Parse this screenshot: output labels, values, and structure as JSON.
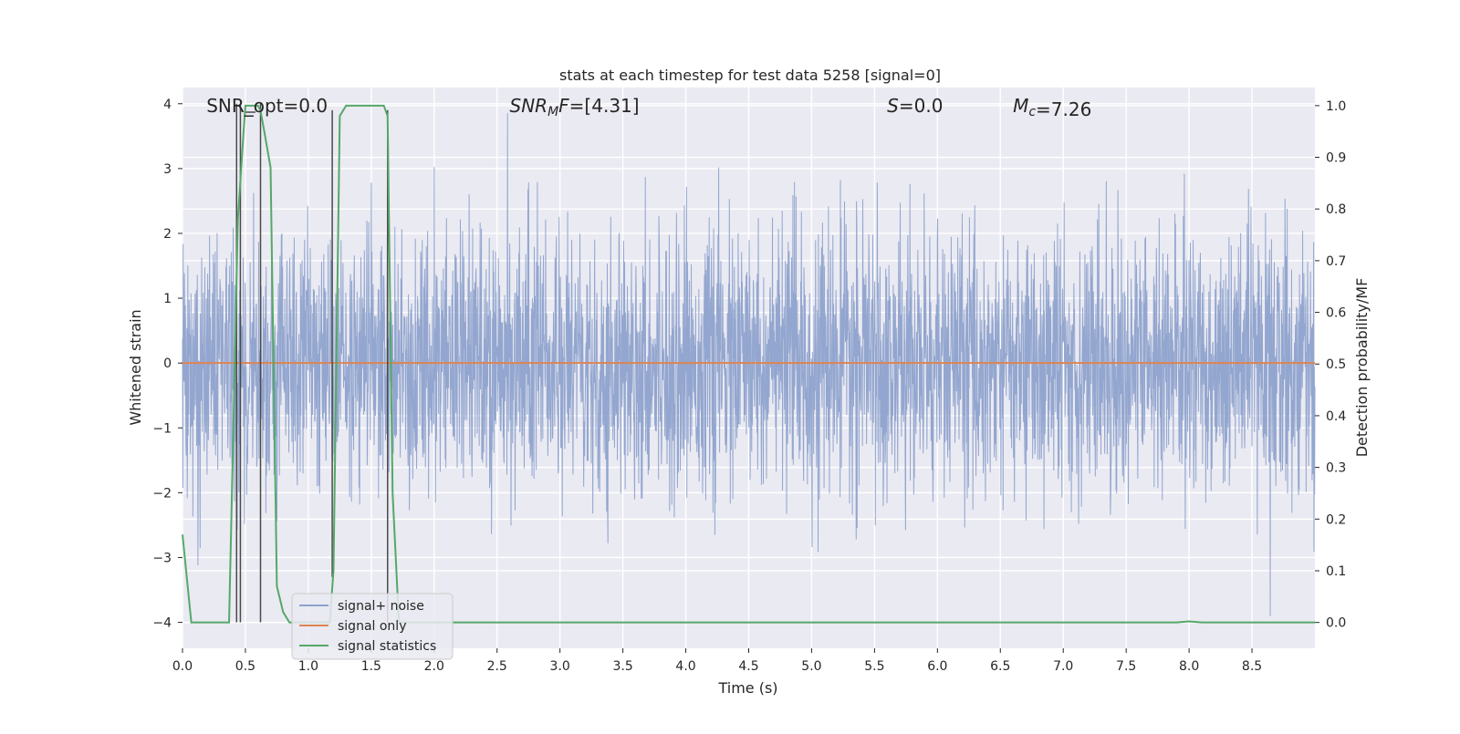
{
  "chart_data": {
    "type": "line",
    "title": "stats at each timestep for test data 5258 [signal=0]",
    "xlabel": "Time (s)",
    "ylabel": "Whitened strain",
    "y2label": "Detection probability/MF",
    "xlim": [
      0.0,
      9.0
    ],
    "ylim": [
      -4.4,
      4.25
    ],
    "y2lim": [
      -0.05,
      1.035
    ],
    "xticks": [
      "0.0",
      "0.5",
      "1.0",
      "1.5",
      "2.0",
      "2.5",
      "3.0",
      "3.5",
      "4.0",
      "4.5",
      "5.0",
      "5.5",
      "6.0",
      "6.5",
      "7.0",
      "7.5",
      "8.0",
      "8.5"
    ],
    "yticks": [
      "4",
      "3",
      "2",
      "1",
      "0",
      "−1",
      "−2",
      "−3",
      "−4"
    ],
    "y2ticks": [
      "1.0",
      "0.9",
      "0.8",
      "0.7",
      "0.6",
      "0.5",
      "0.4",
      "0.3",
      "0.2",
      "0.1",
      "0.0"
    ],
    "grid": true,
    "legend_position": "lower-left",
    "annotations": [
      {
        "text": "SNR_opt=0.0",
        "x": 0.19
      },
      {
        "text": "SNR_MF=[4.31]",
        "x": 2.6
      },
      {
        "text": "S=0.0",
        "x": 5.6
      },
      {
        "text": "M_c=7.26",
        "x": 6.6
      }
    ],
    "series": [
      {
        "name": "signal+ noise",
        "color": "#8ea2cc",
        "axis": "left",
        "description": "whitened noise samples, roughly gaussian with std ~1, spanning about -3.9 to 3.9",
        "noise_std": 1.0,
        "samples": 3600
      },
      {
        "name": "signal only",
        "color": "#dd8452",
        "axis": "left",
        "x": [
          0.0,
          9.0
        ],
        "y": [
          0.0,
          0.0
        ]
      },
      {
        "name": "signal statistics",
        "color": "#55a868",
        "axis": "right",
        "x": [
          0.0,
          0.07,
          0.13,
          0.2,
          0.27,
          0.33,
          0.37,
          0.4,
          0.44,
          0.48,
          0.5,
          0.55,
          0.6,
          0.62,
          0.65,
          0.7,
          0.75,
          0.8,
          0.85,
          0.9,
          1.0,
          1.1,
          1.17,
          1.2,
          1.25,
          1.3,
          1.4,
          1.5,
          1.6,
          1.63,
          1.67,
          1.72,
          1.8,
          2.0,
          3.0,
          4.0,
          5.0,
          6.0,
          7.0,
          7.9,
          8.0,
          8.1,
          8.5,
          9.0
        ],
        "y": [
          0.17,
          0.0,
          0.0,
          0.0,
          0.0,
          0.0,
          0.0,
          0.33,
          0.78,
          0.93,
          1.0,
          1.0,
          1.0,
          0.99,
          0.95,
          0.88,
          0.07,
          0.02,
          0.0,
          0.0,
          0.0,
          0.0,
          0.0,
          0.1,
          0.98,
          1.0,
          1.0,
          1.0,
          1.0,
          0.98,
          0.25,
          0.0,
          0.0,
          0.0,
          0.0,
          0.0,
          0.0,
          0.0,
          0.0,
          0.0,
          0.002,
          0.0,
          0.0,
          0.0
        ]
      }
    ],
    "vertical_markers": [
      {
        "x": 0.43,
        "y_top": 4.0,
        "y_bottom": -4.0
      },
      {
        "x": 0.46,
        "y_top": 4.0,
        "y_bottom": -4.0
      },
      {
        "x": 0.62,
        "y_top": 4.0,
        "y_bottom": -4.0
      },
      {
        "x": 1.19,
        "y_top": 3.9,
        "y_bottom": -3.3
      },
      {
        "x": 1.63,
        "y_top": 3.9,
        "y_bottom": -4.0
      }
    ],
    "marker_color": "#4a4a4a"
  }
}
